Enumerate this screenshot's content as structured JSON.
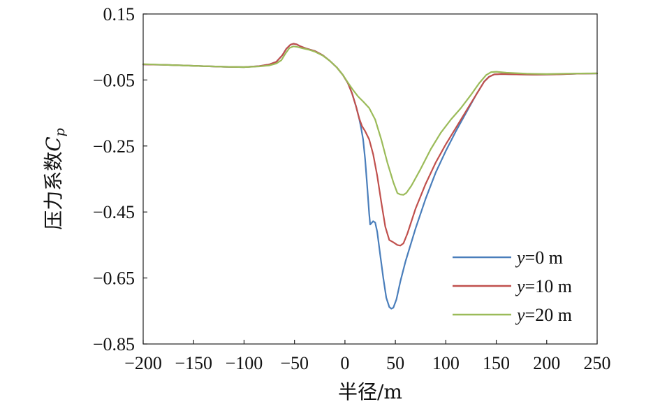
{
  "chart_data": {
    "type": "line",
    "xlabel": "半径/m",
    "ylabel": "压力系数",
    "ylabel_symbol": "C",
    "ylabel_subscript": "p",
    "xlim": [
      -200,
      250
    ],
    "ylim": [
      -0.85,
      0.15
    ],
    "x_ticks": [
      -200,
      -150,
      -100,
      -50,
      0,
      50,
      100,
      150,
      200,
      250
    ],
    "y_ticks": [
      0.15,
      -0.05,
      -0.25,
      -0.45,
      -0.65,
      -0.85
    ],
    "x_tick_labels": [
      "−200",
      "−150",
      "−100",
      "−50",
      "0",
      "50",
      "100",
      "150",
      "200",
      "250"
    ],
    "y_tick_labels": [
      "0.15",
      "−0.05",
      "−0.25",
      "−0.45",
      "−0.65",
      "−0.85"
    ],
    "grid": false,
    "legend_position": "bottom-right",
    "series": [
      {
        "name": "y=0 m",
        "name_var": "y",
        "name_rest": "=0 m",
        "color": "#4a7ebb",
        "points": [
          [
            -200,
            -0.003
          ],
          [
            -180,
            -0.004
          ],
          [
            -160,
            -0.006
          ],
          [
            -140,
            -0.008
          ],
          [
            -120,
            -0.01
          ],
          [
            -100,
            -0.011
          ],
          [
            -85,
            -0.008
          ],
          [
            -75,
            -0.003
          ],
          [
            -68,
            0.005
          ],
          [
            -62,
            0.025
          ],
          [
            -58,
            0.045
          ],
          [
            -54,
            0.057
          ],
          [
            -51,
            0.06
          ],
          [
            -48,
            0.058
          ],
          [
            -44,
            0.052
          ],
          [
            -38,
            0.045
          ],
          [
            -30,
            0.038
          ],
          [
            -22,
            0.025
          ],
          [
            -15,
            0.008
          ],
          [
            -8,
            -0.012
          ],
          [
            -2,
            -0.035
          ],
          [
            3,
            -0.06
          ],
          [
            7,
            -0.09
          ],
          [
            11,
            -0.13
          ],
          [
            14,
            -0.165
          ],
          [
            16,
            -0.195
          ],
          [
            18,
            -0.23
          ],
          [
            20,
            -0.29
          ],
          [
            22,
            -0.37
          ],
          [
            24,
            -0.455
          ],
          [
            25,
            -0.488
          ],
          [
            26,
            -0.485
          ],
          [
            28,
            -0.478
          ],
          [
            30,
            -0.482
          ],
          [
            32,
            -0.51
          ],
          [
            35,
            -0.58
          ],
          [
            38,
            -0.65
          ],
          [
            41,
            -0.71
          ],
          [
            44,
            -0.738
          ],
          [
            46,
            -0.743
          ],
          [
            48,
            -0.74
          ],
          [
            51,
            -0.715
          ],
          [
            55,
            -0.66
          ],
          [
            60,
            -0.6
          ],
          [
            70,
            -0.5
          ],
          [
            80,
            -0.41
          ],
          [
            90,
            -0.33
          ],
          [
            100,
            -0.265
          ],
          [
            110,
            -0.205
          ],
          [
            120,
            -0.15
          ],
          [
            130,
            -0.095
          ],
          [
            138,
            -0.055
          ],
          [
            143,
            -0.04
          ],
          [
            148,
            -0.033
          ],
          [
            155,
            -0.032
          ],
          [
            170,
            -0.033
          ],
          [
            190,
            -0.034
          ],
          [
            210,
            -0.033
          ],
          [
            230,
            -0.031
          ],
          [
            250,
            -0.03
          ]
        ]
      },
      {
        "name": "y=10 m",
        "name_var": "y",
        "name_rest": "=10 m",
        "color": "#c0504d",
        "points": [
          [
            -200,
            -0.003
          ],
          [
            -180,
            -0.004
          ],
          [
            -160,
            -0.006
          ],
          [
            -140,
            -0.008
          ],
          [
            -120,
            -0.01
          ],
          [
            -100,
            -0.011
          ],
          [
            -85,
            -0.008
          ],
          [
            -75,
            -0.003
          ],
          [
            -68,
            0.005
          ],
          [
            -62,
            0.025
          ],
          [
            -58,
            0.045
          ],
          [
            -54,
            0.057
          ],
          [
            -51,
            0.06
          ],
          [
            -48,
            0.058
          ],
          [
            -44,
            0.052
          ],
          [
            -38,
            0.045
          ],
          [
            -30,
            0.038
          ],
          [
            -22,
            0.025
          ],
          [
            -15,
            0.008
          ],
          [
            -8,
            -0.012
          ],
          [
            -2,
            -0.035
          ],
          [
            3,
            -0.06
          ],
          [
            7,
            -0.09
          ],
          [
            11,
            -0.13
          ],
          [
            14,
            -0.165
          ],
          [
            17,
            -0.19
          ],
          [
            20,
            -0.205
          ],
          [
            24,
            -0.23
          ],
          [
            28,
            -0.275
          ],
          [
            32,
            -0.34
          ],
          [
            36,
            -0.42
          ],
          [
            40,
            -0.495
          ],
          [
            44,
            -0.535
          ],
          [
            48,
            -0.542
          ],
          [
            52,
            -0.55
          ],
          [
            55,
            -0.552
          ],
          [
            58,
            -0.545
          ],
          [
            62,
            -0.515
          ],
          [
            70,
            -0.44
          ],
          [
            80,
            -0.365
          ],
          [
            90,
            -0.3
          ],
          [
            100,
            -0.245
          ],
          [
            110,
            -0.195
          ],
          [
            120,
            -0.145
          ],
          [
            130,
            -0.095
          ],
          [
            138,
            -0.055
          ],
          [
            143,
            -0.04
          ],
          [
            148,
            -0.033
          ],
          [
            155,
            -0.032
          ],
          [
            170,
            -0.033
          ],
          [
            190,
            -0.034
          ],
          [
            210,
            -0.033
          ],
          [
            230,
            -0.031
          ],
          [
            250,
            -0.03
          ]
        ]
      },
      {
        "name": "y=20 m",
        "name_var": "y",
        "name_rest": "=20 m",
        "color": "#9bbb59",
        "points": [
          [
            -200,
            -0.002
          ],
          [
            -180,
            -0.004
          ],
          [
            -160,
            -0.006
          ],
          [
            -140,
            -0.008
          ],
          [
            -120,
            -0.01
          ],
          [
            -100,
            -0.011
          ],
          [
            -85,
            -0.009
          ],
          [
            -75,
            -0.006
          ],
          [
            -68,
            0.0
          ],
          [
            -63,
            0.01
          ],
          [
            -59,
            0.03
          ],
          [
            -55,
            0.047
          ],
          [
            -51,
            0.052
          ],
          [
            -47,
            0.05
          ],
          [
            -42,
            0.046
          ],
          [
            -36,
            0.042
          ],
          [
            -30,
            0.036
          ],
          [
            -22,
            0.024
          ],
          [
            -15,
            0.008
          ],
          [
            -8,
            -0.012
          ],
          [
            -2,
            -0.035
          ],
          [
            3,
            -0.058
          ],
          [
            8,
            -0.08
          ],
          [
            13,
            -0.1
          ],
          [
            18,
            -0.115
          ],
          [
            24,
            -0.135
          ],
          [
            30,
            -0.17
          ],
          [
            36,
            -0.23
          ],
          [
            42,
            -0.3
          ],
          [
            48,
            -0.36
          ],
          [
            52,
            -0.393
          ],
          [
            55,
            -0.397
          ],
          [
            58,
            -0.398
          ],
          [
            61,
            -0.392
          ],
          [
            66,
            -0.37
          ],
          [
            75,
            -0.32
          ],
          [
            85,
            -0.26
          ],
          [
            95,
            -0.21
          ],
          [
            105,
            -0.17
          ],
          [
            115,
            -0.135
          ],
          [
            125,
            -0.095
          ],
          [
            133,
            -0.06
          ],
          [
            140,
            -0.035
          ],
          [
            145,
            -0.026
          ],
          [
            150,
            -0.025
          ],
          [
            160,
            -0.028
          ],
          [
            180,
            -0.031
          ],
          [
            200,
            -0.032
          ],
          [
            220,
            -0.031
          ],
          [
            240,
            -0.03
          ],
          [
            250,
            -0.03
          ]
        ]
      }
    ]
  }
}
